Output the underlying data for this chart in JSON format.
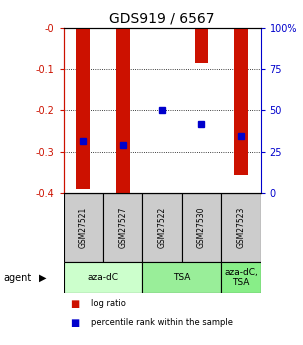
{
  "title": "GDS919 / 6567",
  "categories": [
    "GSM27521",
    "GSM27527",
    "GSM27522",
    "GSM27530",
    "GSM27523"
  ],
  "bar_values": [
    -0.39,
    -0.4,
    -0.004,
    -0.085,
    -0.355
  ],
  "percentile_values": [
    -0.275,
    -0.284,
    -0.2,
    -0.234,
    -0.263
  ],
  "bar_color": "#cc1100",
  "marker_color": "#0000cc",
  "ylim_left": [
    -0.4,
    0.0
  ],
  "yticks_left": [
    0.0,
    -0.1,
    -0.2,
    -0.3,
    -0.4
  ],
  "ytick_labels_left": [
    "-0",
    "-0.1",
    "-0.2",
    "-0.3",
    "-0.4"
  ],
  "ytick_labels_right": [
    "100%",
    "75",
    "50",
    "25",
    "0"
  ],
  "yticks_right": [
    100,
    75,
    50,
    25,
    0
  ],
  "agent_groups": [
    {
      "label": "aza-dC",
      "indices": [
        0,
        1
      ],
      "color": "#ccffcc"
    },
    {
      "label": "TSA",
      "indices": [
        2,
        3
      ],
      "color": "#99ee99"
    },
    {
      "label": "aza-dC,\nTSA",
      "indices": [
        4
      ],
      "color": "#88ee88"
    }
  ],
  "legend_items": [
    {
      "color": "#cc1100",
      "label": "log ratio"
    },
    {
      "color": "#0000cc",
      "label": "percentile rank within the sample"
    }
  ],
  "bar_width": 0.35,
  "bg_xlabels": "#cccccc",
  "left_axis_color": "#cc1100",
  "right_axis_color": "#0000cc"
}
